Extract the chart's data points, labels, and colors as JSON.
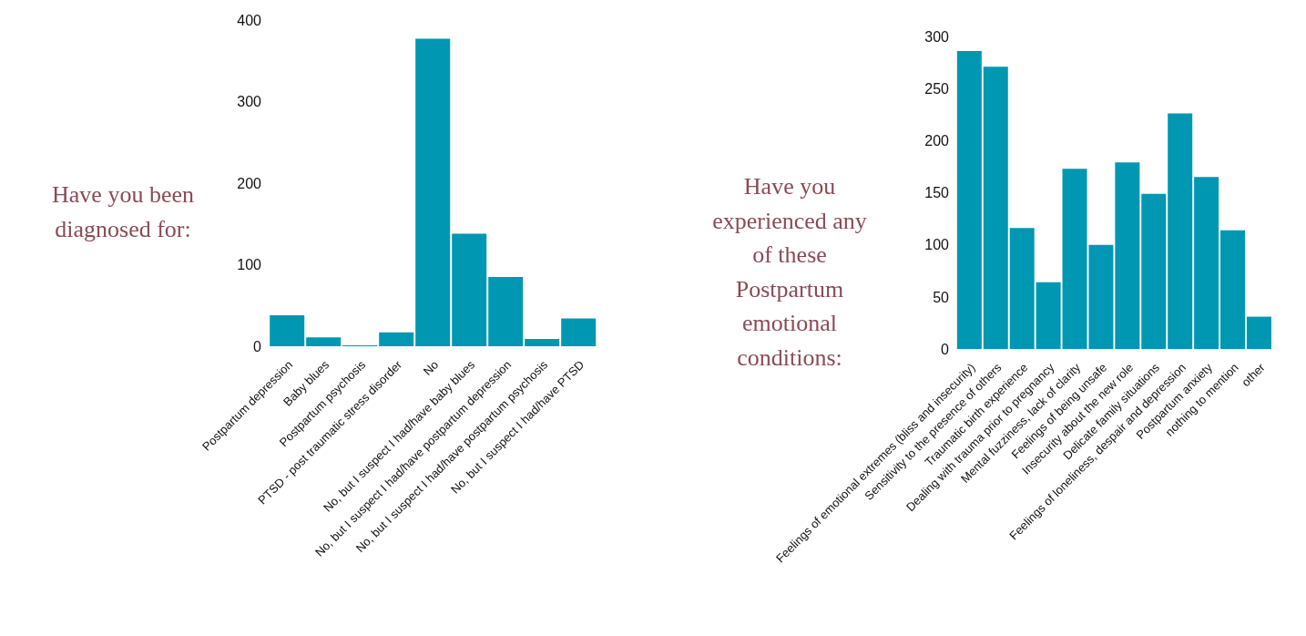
{
  "chart_data": [
    {
      "type": "bar",
      "title": "Have you been diagnosed for:",
      "categories": [
        "Postpartum depression",
        "Baby blues",
        "Postpartum psychosis",
        "PTSD - post traumatic stress disorder",
        "No",
        "No, but I suspect I had/have baby blues",
        "No, but I suspect I had/have postpartum depression",
        "No, but I suspect I had/have postpartum psychosis",
        "No, but I suspect I had/have PTSD"
      ],
      "values": [
        38,
        11,
        1,
        17,
        377,
        138,
        85,
        9,
        34
      ],
      "color": "#0097b2",
      "ylim": [
        0,
        400
      ],
      "yticks": [
        0,
        100,
        200,
        300,
        400
      ]
    },
    {
      "type": "bar",
      "title": "Have you experienced any of these Postpartum emotional conditions:",
      "categories": [
        "Feelings of emotional extremes (bliss and insecurity)",
        "Sensitivity to the presence of others",
        "Traumatic birth experience",
        "Dealing with trauma prior to pregnancy",
        "Mental fuzziness, lack of clarity",
        "Feelings of being unsafe",
        "Insecurity about the new role",
        "Delicate family situations",
        "Feelings of loneliness, despair and depression",
        "Postpartum anxiety",
        "nothing to mention",
        "other"
      ],
      "values": [
        286,
        271,
        116,
        64,
        173,
        100,
        179,
        149,
        226,
        165,
        114,
        31
      ],
      "color": "#0097b2",
      "ylim": [
        0,
        300
      ],
      "yticks": [
        0,
        50,
        100,
        150,
        200,
        250,
        300
      ]
    }
  ]
}
